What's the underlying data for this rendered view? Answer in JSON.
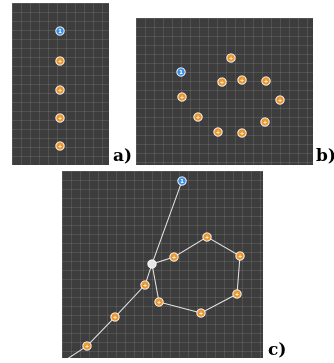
{
  "panels": {
    "a": {
      "label": "a)",
      "start_marker": {
        "glyph": "1",
        "color": "#3a8fe0"
      },
      "waypoint_marker": {
        "glyph": "+",
        "color": "#e9952e"
      },
      "waypoint_count": 5
    },
    "b": {
      "label": "b)",
      "start_marker": {
        "glyph": "1",
        "color": "#3a8fe0"
      },
      "waypoint_marker": {
        "glyph": "+",
        "color": "#e9952e"
      },
      "waypoint_count": 10
    },
    "c": {
      "label": "c)",
      "start_marker": {
        "glyph": "1",
        "color": "#3a8fe0"
      },
      "home_marker": {
        "glyph": "",
        "color": "#e6e6e6"
      },
      "waypoint_marker": {
        "glyph": "+",
        "color": "#e9952e"
      },
      "path_color": "#e8e8e8",
      "waypoint_count": 12
    }
  },
  "colors": {
    "grid_background": "#3d3d3d",
    "start_marker": "#3a8fe0",
    "waypoint_marker": "#e9952e",
    "path_line": "#e8e8e8"
  }
}
